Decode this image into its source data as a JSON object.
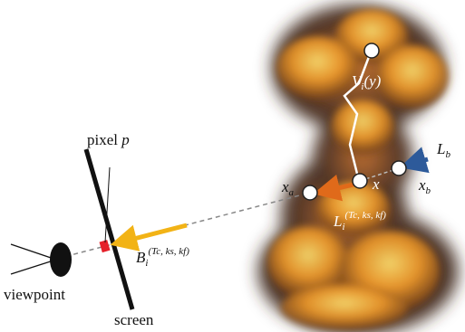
{
  "labels": {
    "pixel": {
      "word": "pixel",
      "var": "p"
    },
    "viewpoint": "viewpoint",
    "screen": "screen",
    "vi": {
      "base": "V",
      "sub": "i",
      "arg": "(y)"
    },
    "x": "x",
    "xa": {
      "base": "x",
      "sub": "a"
    },
    "xb": {
      "base": "x",
      "sub": "b"
    },
    "lb": {
      "base": "L",
      "sub": "b"
    },
    "li": {
      "base": "L",
      "sub": "i",
      "sup": "(Tc, ks, kf)"
    },
    "bi": {
      "base": "B",
      "sub": "i",
      "sup": "(Tc, ks, kf)"
    }
  }
}
